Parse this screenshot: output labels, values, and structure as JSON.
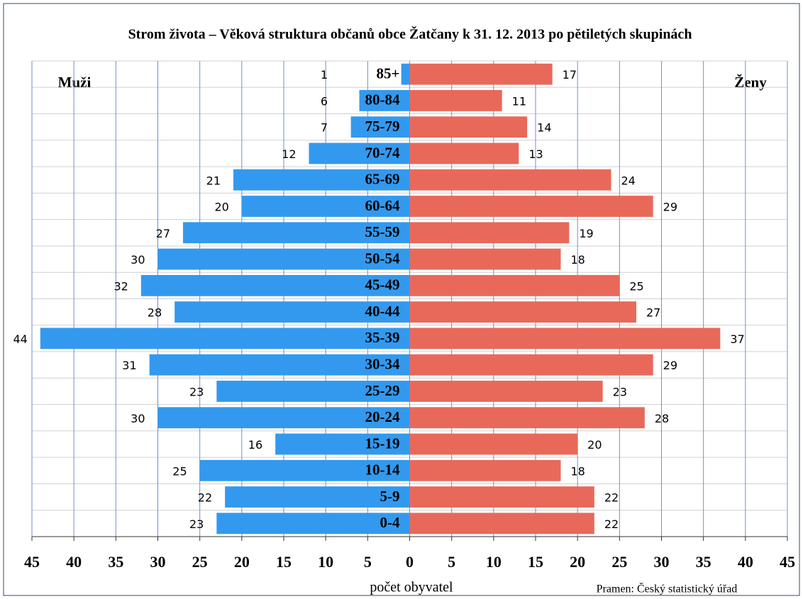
{
  "chart_data": {
    "type": "pyramid",
    "title": "Strom života – Věková struktura občanů obce Žatčany k  31. 12. 2013 po pětiletých skupinách",
    "categories": [
      "85+",
      "80-84",
      "75-79",
      "70-74",
      "65-69",
      "60-64",
      "55-59",
      "50-54",
      "45-49",
      "40-44",
      "35-39",
      "30-34",
      "25-29",
      "20-24",
      "15-19",
      "10-14",
      "5-9",
      "0-4"
    ],
    "series": [
      {
        "name": "Muži",
        "color": "#3399ee",
        "values": [
          -1,
          -6,
          -7,
          -12,
          -21,
          -20,
          -27,
          -30,
          -32,
          -28,
          -44,
          -31,
          -23,
          -30,
          -16,
          -25,
          -22,
          -23
        ],
        "value_labels": [
          "1",
          "6",
          "7",
          "12",
          "21",
          "20",
          "27",
          "30",
          "32",
          "28",
          "44",
          "31",
          "23",
          "30",
          "16",
          "25",
          "22",
          "23"
        ]
      },
      {
        "name": "Ženy",
        "color": "#e8695a",
        "values": [
          17,
          11,
          14,
          13,
          24,
          29,
          19,
          18,
          25,
          27,
          37,
          29,
          23,
          28,
          20,
          18,
          22,
          22
        ]
      }
    ],
    "xlim": [
      -45,
      45
    ],
    "xticks": [
      {
        "value": -45,
        "label": "45"
      },
      {
        "value": -40,
        "label": "40"
      },
      {
        "value": -35,
        "label": "35"
      },
      {
        "value": -30,
        "label": "30"
      },
      {
        "value": -25,
        "label": "25"
      },
      {
        "value": -20,
        "label": "20"
      },
      {
        "value": -15,
        "label": "15"
      },
      {
        "value": -10,
        "label": "10"
      },
      {
        "value": -5,
        "label": "5"
      },
      0,
      5,
      10,
      15,
      20,
      25,
      30,
      35,
      40,
      45
    ],
    "xlabel": "počet obyvatel",
    "source": "Pramen: Český statistický úřad",
    "grid": true
  }
}
